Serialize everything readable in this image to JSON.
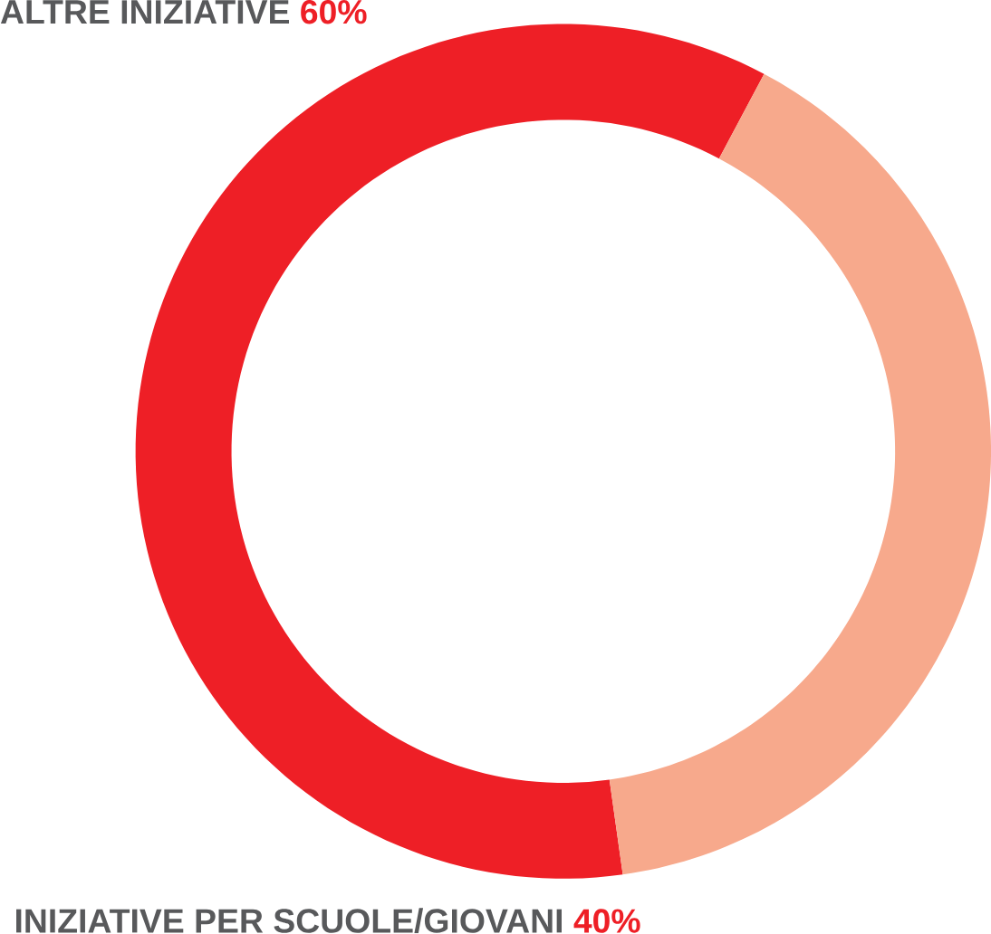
{
  "chart_data": {
    "type": "donut",
    "categories": [
      "ALTRE INIZIATIVE",
      "INIZIATIVE PER SCUOLE/GIOVANI"
    ],
    "values": [
      60,
      40
    ],
    "value_labels": [
      "60%",
      "40%"
    ],
    "colors": [
      "#ee1f26",
      "#f7a98c"
    ]
  }
}
